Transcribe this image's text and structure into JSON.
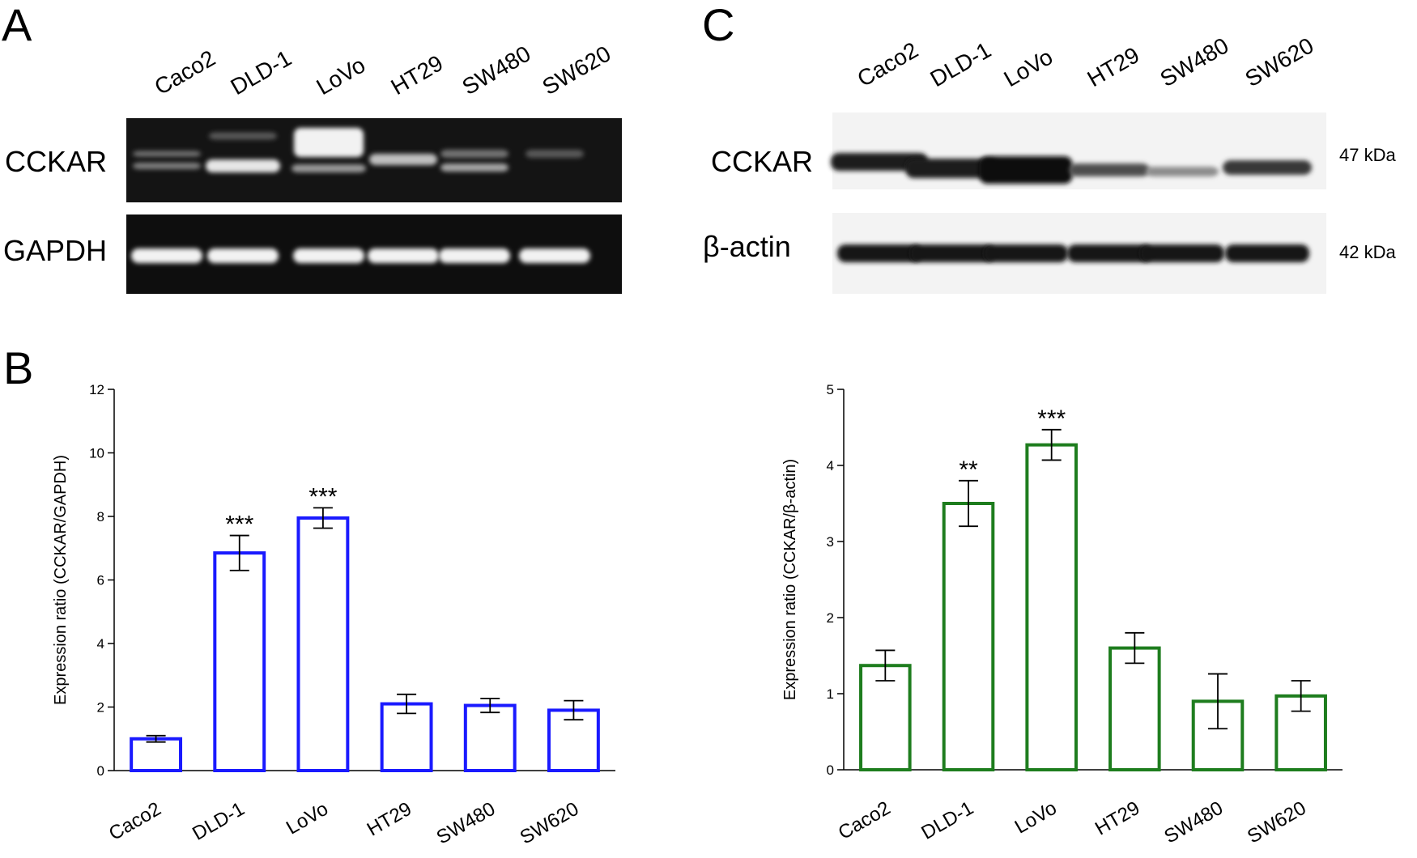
{
  "panels": {
    "A": {
      "letter": "A",
      "lanes": [
        "Caco2",
        "DLD-1",
        "LoVo",
        "HT29",
        "SW480",
        "SW620"
      ],
      "rows": [
        "CCKAR",
        "GAPDH"
      ]
    },
    "C": {
      "letter": "C",
      "lanes": [
        "Caco2",
        "DLD-1",
        "LoVo",
        "HT29",
        "SW480",
        "SW620"
      ],
      "rows": [
        "CCKAR",
        "β-actin"
      ],
      "sizes": [
        "47 kDa",
        "42 kDa"
      ]
    },
    "B": {
      "letter": "B"
    }
  },
  "chart_data": [
    {
      "type": "bar",
      "panel": "B",
      "categories": [
        "Caco2",
        "DLD-1",
        "LoVo",
        "HT29",
        "SW480",
        "SW620"
      ],
      "values": [
        1.0,
        6.85,
        7.95,
        2.1,
        2.05,
        1.9
      ],
      "errors": [
        0.1,
        0.55,
        0.32,
        0.3,
        0.22,
        0.3
      ],
      "significance": [
        "",
        "***",
        "***",
        "",
        "",
        ""
      ],
      "ylabel": "Expression ratio (CCKAR/GAPDH)",
      "xlabel": "",
      "ylim": [
        0,
        12
      ],
      "yticks": [
        0,
        2,
        4,
        6,
        8,
        10,
        12
      ],
      "bar_color": "#1a1aff",
      "grid": false
    },
    {
      "type": "bar",
      "panel": "C",
      "categories": [
        "Caco2",
        "DLD-1",
        "LoVo",
        "HT29",
        "SW480",
        "SW620"
      ],
      "values": [
        1.37,
        3.5,
        4.27,
        1.6,
        0.9,
        0.97
      ],
      "errors": [
        0.2,
        0.3,
        0.2,
        0.2,
        0.36,
        0.2
      ],
      "significance": [
        "",
        "**",
        "***",
        "",
        "",
        ""
      ],
      "ylabel": "Expression ratio (CCKAR/β-actin)",
      "xlabel": "",
      "ylim": [
        0,
        5
      ],
      "yticks": [
        0,
        1,
        2,
        3,
        4,
        5
      ],
      "bar_color": "#1e7d1e",
      "grid": false
    }
  ]
}
